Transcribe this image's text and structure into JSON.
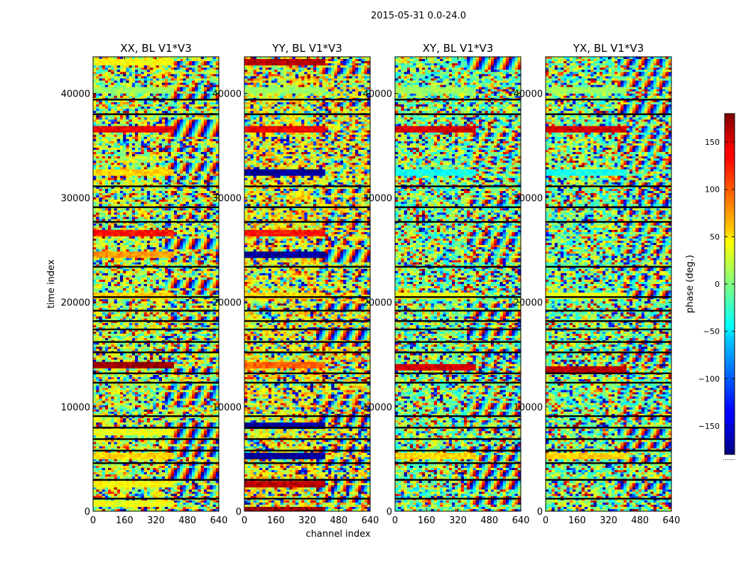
{
  "figure": {
    "suptitle": "2015-05-31 0.0-24.0",
    "xlabel": "channel index",
    "ylabel": "time index"
  },
  "chart_data": {
    "type": "heatmap",
    "colormap": "jet",
    "x_ticks": [
      "0",
      "160",
      "320",
      "480",
      "640"
    ],
    "x_range": [
      0,
      640
    ],
    "y_ticks": [
      "0",
      "10000",
      "20000",
      "30000",
      "40000"
    ],
    "y_range": [
      0,
      43500
    ],
    "panels": [
      {
        "title": "XX, BL V1*V3",
        "dominant_phase": 20,
        "bands": [
          {
            "t": 800,
            "phase": 40
          },
          {
            "t": 2700,
            "phase": 45
          },
          {
            "t": 5300,
            "phase": 60
          },
          {
            "t": 7600,
            "phase": 40
          },
          {
            "t": 14000,
            "phase": 170
          },
          {
            "t": 20800,
            "phase": 60
          },
          {
            "t": 24600,
            "phase": 80
          },
          {
            "t": 26700,
            "phase": 130
          },
          {
            "t": 32600,
            "phase": 60
          },
          {
            "t": 36600,
            "phase": 140
          },
          {
            "t": 40300,
            "phase": 10
          },
          {
            "t": 43000,
            "phase": 45
          }
        ]
      },
      {
        "title": "YY, BL V1*V3",
        "dominant_phase": 40,
        "bands": [
          {
            "t": 200,
            "phase": 170
          },
          {
            "t": 2700,
            "phase": 160
          },
          {
            "t": 5300,
            "phase": -170
          },
          {
            "t": 8200,
            "phase": -170
          },
          {
            "t": 14000,
            "phase": 100
          },
          {
            "t": 20800,
            "phase": 60
          },
          {
            "t": 24600,
            "phase": -170
          },
          {
            "t": 26700,
            "phase": 130
          },
          {
            "t": 32500,
            "phase": -170
          },
          {
            "t": 36600,
            "phase": 140
          },
          {
            "t": 40300,
            "phase": 10
          },
          {
            "t": 43000,
            "phase": 160
          }
        ]
      },
      {
        "title": "XY, BL V1*V3",
        "dominant_phase": 0,
        "bands": [
          {
            "t": 5300,
            "phase": 60
          },
          {
            "t": 13800,
            "phase": 150
          },
          {
            "t": 20800,
            "phase": 40
          },
          {
            "t": 32600,
            "phase": -40
          },
          {
            "t": 36600,
            "phase": 150
          },
          {
            "t": 40300,
            "phase": 10
          }
        ]
      },
      {
        "title": "YX, BL V1*V3",
        "dominant_phase": 0,
        "bands": [
          {
            "t": 5300,
            "phase": 60
          },
          {
            "t": 13600,
            "phase": 160
          },
          {
            "t": 20800,
            "phase": 40
          },
          {
            "t": 32600,
            "phase": -40
          },
          {
            "t": 36600,
            "phase": 150
          },
          {
            "t": 40300,
            "phase": 10
          }
        ]
      }
    ],
    "black_gaps": [
      1200,
      3000,
      4600,
      5800,
      6900,
      8000,
      9100,
      12300,
      13200,
      15200,
      16200,
      17400,
      18200,
      19200,
      20500,
      23400,
      27700,
      29100,
      31100,
      38000,
      39400
    ],
    "colorbar": {
      "label": "phase (deg.)",
      "range": [
        -180,
        180
      ],
      "ticks": [
        "150",
        "100",
        "50",
        "0",
        "−50",
        "−100",
        "−150"
      ],
      "tick_values": [
        150,
        100,
        50,
        0,
        -50,
        -100,
        -150
      ],
      "overflow_marker": "......"
    }
  }
}
